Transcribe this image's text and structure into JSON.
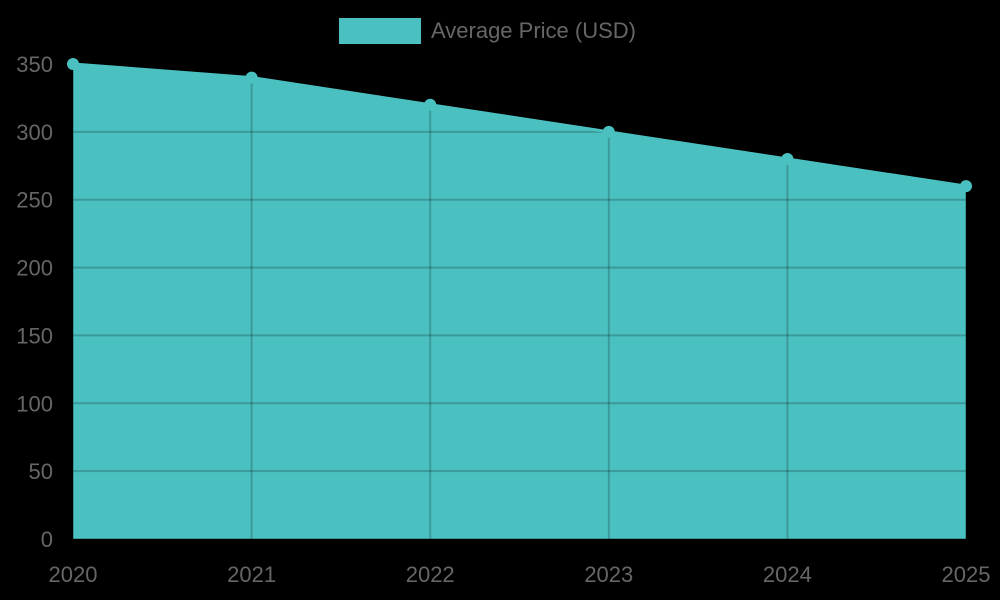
{
  "chart_data": {
    "type": "area",
    "title": "",
    "categories": [
      "2020",
      "2021",
      "2022",
      "2023",
      "2024",
      "2025"
    ],
    "series": [
      {
        "name": "Average Price (USD)",
        "values": [
          350,
          340,
          320,
          300,
          280,
          260
        ],
        "color": "#4bc0c0"
      }
    ],
    "xlabel": "",
    "ylabel": "",
    "ylim": [
      0,
      350
    ],
    "yticks": [
      "0",
      "50",
      "100",
      "150",
      "200",
      "250",
      "300",
      "350"
    ],
    "grid": true,
    "legend_position": "top"
  },
  "legend": {
    "label": "Average Price (USD)"
  }
}
